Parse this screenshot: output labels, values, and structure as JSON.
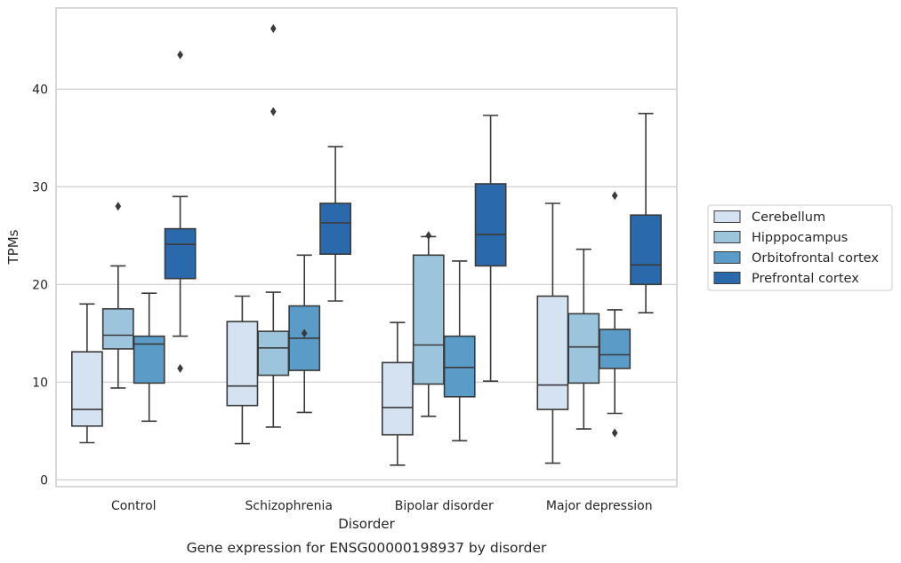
{
  "chart_data": {
    "type": "box",
    "caption": "Gene expression for ENSG00000198937 by disorder",
    "xlabel": "Disorder",
    "ylabel": "TPMs",
    "ylim": [
      -0.7,
      48.3
    ],
    "yticks": [
      0,
      10,
      20,
      30,
      40
    ],
    "grid": "horizontal",
    "legend_position": "center-right",
    "categories": [
      "Control",
      "Schizophrenia",
      "Bipolar disorder",
      "Major depression"
    ],
    "series": [
      {
        "name": "Cerebellum",
        "color": "#d4e2f1",
        "boxes": [
          {
            "whisker_low": 3.8,
            "q1": 5.5,
            "median": 7.2,
            "q3": 13.1,
            "whisker_high": 18.0,
            "outliers": []
          },
          {
            "whisker_low": 3.7,
            "q1": 7.6,
            "median": 9.6,
            "q3": 16.2,
            "whisker_high": 18.8,
            "outliers": []
          },
          {
            "whisker_low": 1.5,
            "q1": 4.6,
            "median": 7.4,
            "q3": 12.0,
            "whisker_high": 16.1,
            "outliers": []
          },
          {
            "whisker_low": 1.7,
            "q1": 7.2,
            "median": 9.7,
            "q3": 18.8,
            "whisker_high": 28.3,
            "outliers": []
          }
        ]
      },
      {
        "name": "Hipppocampus",
        "color": "#9cc4dd",
        "boxes": [
          {
            "whisker_low": 9.4,
            "q1": 13.4,
            "median": 14.8,
            "q3": 17.5,
            "whisker_high": 21.9,
            "outliers": [
              28.0
            ]
          },
          {
            "whisker_low": 5.4,
            "q1": 10.7,
            "median": 13.5,
            "q3": 15.2,
            "whisker_high": 19.2,
            "outliers": [
              37.7,
              46.2
            ]
          },
          {
            "whisker_low": 6.5,
            "q1": 9.8,
            "median": 13.8,
            "q3": 23.0,
            "whisker_high": 24.9,
            "outliers": [
              25.0
            ]
          },
          {
            "whisker_low": 5.2,
            "q1": 9.9,
            "median": 13.6,
            "q3": 17.0,
            "whisker_high": 23.6,
            "outliers": []
          }
        ]
      },
      {
        "name": "Orbitofrontal cortex",
        "color": "#5b9bc8",
        "boxes": [
          {
            "whisker_low": 6.0,
            "q1": 9.9,
            "median": 13.9,
            "q3": 14.7,
            "whisker_high": 19.1,
            "outliers": []
          },
          {
            "whisker_low": 6.9,
            "q1": 11.2,
            "median": 14.5,
            "q3": 17.8,
            "whisker_high": 23.0,
            "outliers": [
              15.0
            ]
          },
          {
            "whisker_low": 4.0,
            "q1": 8.5,
            "median": 11.5,
            "q3": 14.7,
            "whisker_high": 22.4,
            "outliers": []
          },
          {
            "whisker_low": 6.8,
            "q1": 11.4,
            "median": 12.8,
            "q3": 15.4,
            "whisker_high": 17.4,
            "outliers": [
              4.8,
              29.1
            ]
          }
        ]
      },
      {
        "name": "Prefrontal cortex",
        "color": "#2a6aac",
        "boxes": [
          {
            "whisker_low": 14.7,
            "q1": 20.6,
            "median": 24.1,
            "q3": 25.7,
            "whisker_high": 29.0,
            "outliers": [
              11.4,
              43.5
            ]
          },
          {
            "whisker_low": 18.3,
            "q1": 23.1,
            "median": 26.3,
            "q3": 28.3,
            "whisker_high": 34.1,
            "outliers": []
          },
          {
            "whisker_low": 10.1,
            "q1": 21.9,
            "median": 25.1,
            "q3": 30.3,
            "whisker_high": 37.3,
            "outliers": []
          },
          {
            "whisker_low": 17.1,
            "q1": 20.0,
            "median": 22.0,
            "q3": 27.1,
            "whisker_high": 37.5,
            "outliers": []
          }
        ]
      }
    ]
  }
}
